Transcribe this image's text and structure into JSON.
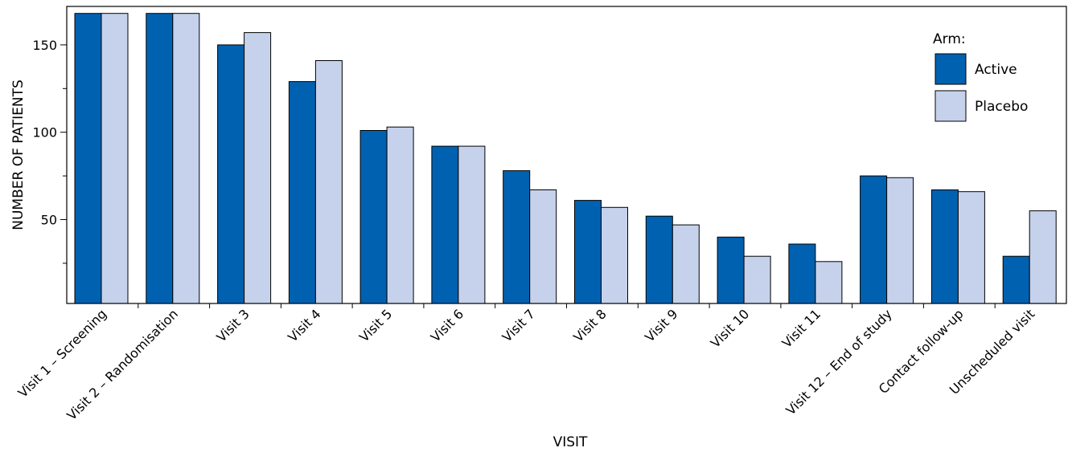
{
  "chart_data": {
    "type": "bar",
    "title": "",
    "xlabel": "VISIT",
    "ylabel": "NUMBER OF PATIENTS",
    "categories": [
      "Visit 1 – Screening",
      "Visit 2 – Randomisation",
      "Visit 3",
      "Visit 4",
      "Visit 5",
      "Visit 6",
      "Visit 7",
      "Visit 8",
      "Visit 9",
      "Visit 10",
      "Visit 11",
      "Visit 12 – End of study",
      "Contact follow-up",
      "Unscheduled visit"
    ],
    "series": [
      {
        "name": "Active",
        "color": "#0061b0",
        "values": [
          168,
          168,
          150,
          129,
          101,
          92,
          78,
          61,
          52,
          40,
          36,
          75,
          67,
          29
        ]
      },
      {
        "name": "Placebo",
        "color": "#c6d2ec",
        "values": [
          168,
          168,
          157,
          141,
          103,
          92,
          67,
          57,
          47,
          29,
          26,
          74,
          66,
          55
        ]
      }
    ],
    "ylim": [
      2,
      172
    ],
    "yticks": [
      50,
      100,
      150
    ],
    "grid": false,
    "legend": {
      "title": "Arm:",
      "position": "top-right"
    }
  }
}
